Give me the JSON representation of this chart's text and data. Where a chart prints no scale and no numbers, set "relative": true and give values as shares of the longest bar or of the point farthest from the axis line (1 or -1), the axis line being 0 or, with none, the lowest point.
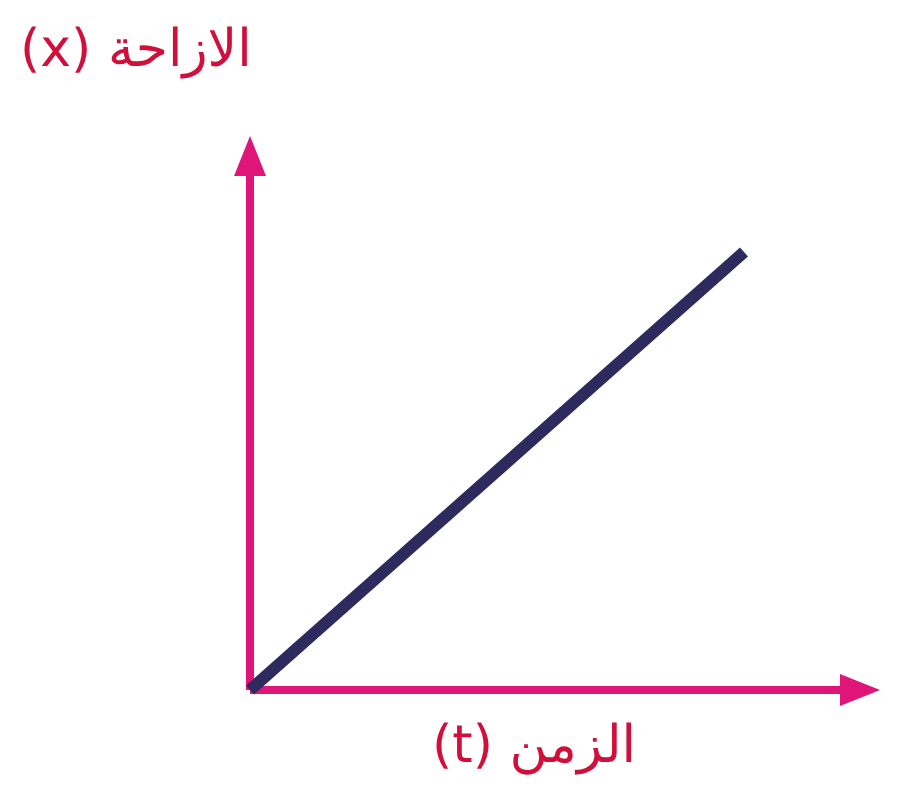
{
  "chart_data": {
    "type": "line",
    "xlabel": "الزمن (t)",
    "ylabel": "الازاحة (x)",
    "relative": true,
    "categories": [
      null,
      null
    ],
    "series": [
      {
        "color": "#2e2a5e",
        "values": [
          0,
          1
        ]
      }
    ],
    "legend": false,
    "marker": "none"
  }
}
